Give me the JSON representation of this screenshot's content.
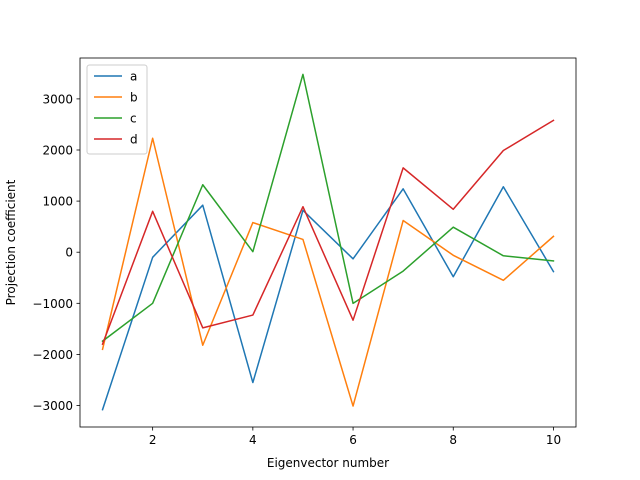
{
  "chart_data": {
    "type": "line",
    "title": "",
    "xlabel": "Eigenvector number",
    "ylabel": "Projection coefficient",
    "x": [
      1,
      2,
      3,
      4,
      5,
      6,
      7,
      8,
      9,
      10
    ],
    "xlim": [
      0.55,
      10.45
    ],
    "ylim": [
      -3420,
      3800
    ],
    "xticks": [
      2,
      4,
      6,
      8,
      10
    ],
    "yticks": [
      -3000,
      -2000,
      -1000,
      0,
      1000,
      2000,
      3000
    ],
    "grid": false,
    "legend_position": "top-left",
    "series": [
      {
        "name": "a",
        "color": "#1f77b4",
        "values": [
          -3080,
          -100,
          920,
          -2550,
          820,
          -130,
          1240,
          -480,
          1280,
          -380
        ]
      },
      {
        "name": "b",
        "color": "#ff7f0e",
        "values": [
          -1900,
          2230,
          -1820,
          580,
          250,
          -3010,
          620,
          -60,
          -550,
          310
        ]
      },
      {
        "name": "c",
        "color": "#2ca02c",
        "values": [
          -1740,
          -1000,
          1320,
          10,
          3480,
          -1000,
          -370,
          490,
          -70,
          -170
        ]
      },
      {
        "name": "d",
        "color": "#d62728",
        "values": [
          -1800,
          800,
          -1480,
          -1230,
          890,
          -1330,
          1650,
          840,
          1990,
          2580
        ]
      }
    ]
  }
}
